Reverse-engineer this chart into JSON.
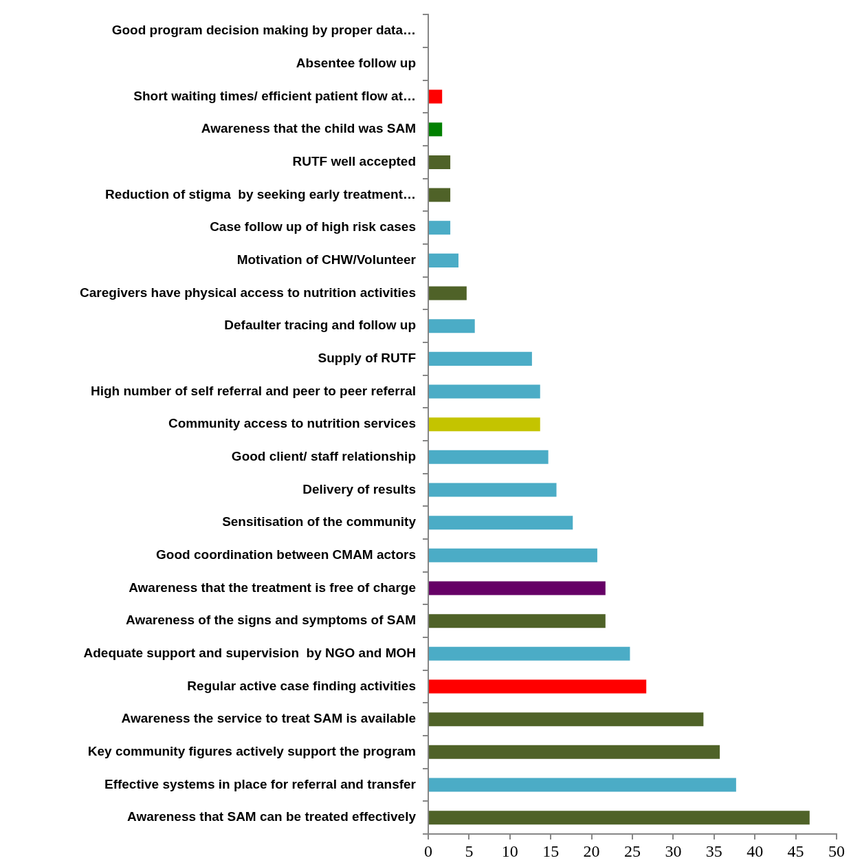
{
  "chart_data": {
    "type": "bar",
    "orientation": "horizontal",
    "categories": [
      "Good program decision making by proper data…",
      "Absentee follow up",
      "Short waiting times/ efficient patient flow at…",
      "Awareness that the child was SAM",
      "RUTF well accepted",
      "Reduction of stigma  by seeking early treatment…",
      "Case follow up of high risk cases",
      "Motivation of CHW/Volunteer",
      "Caregivers have physical access to nutrition activities",
      "Defaulter tracing and follow up",
      "Supply of RUTF",
      "High number of self referral and peer to peer referral",
      "Community access to nutrition services",
      "Good client/ staff relationship",
      "Delivery of results",
      "Sensitisation of the community",
      "Good coordination between CMAM actors",
      "Awareness that the treatment is free of charge",
      "Awareness of the signs and symptoms of SAM",
      "Adequate support and supervision  by NGO and MOH",
      "Regular active case finding activities",
      "Awareness the service to treat SAM is available",
      "Key community figures actively support the program",
      "Effective systems in place for referral and transfer",
      "Awareness that SAM can be treated effectively"
    ],
    "values": [
      0,
      0,
      1.7,
      1.7,
      2.7,
      2.7,
      2.7,
      3.7,
      4.7,
      5.7,
      12.7,
      13.7,
      13.7,
      14.7,
      15.7,
      17.7,
      20.7,
      21.7,
      21.7,
      24.7,
      26.7,
      33.7,
      35.7,
      37.7,
      46.7
    ],
    "colors": [
      "#4bacc6",
      "#4bacc6",
      "#ff0000",
      "#008000",
      "#4f6228",
      "#4f6228",
      "#4bacc6",
      "#4bacc6",
      "#4f6228",
      "#4bacc6",
      "#4bacc6",
      "#4bacc6",
      "#c4c400",
      "#4bacc6",
      "#4bacc6",
      "#4bacc6",
      "#4bacc6",
      "#660066",
      "#4f6228",
      "#4bacc6",
      "#ff0000",
      "#4f6228",
      "#4f6228",
      "#4bacc6",
      "#4f6228"
    ],
    "xlim": [
      0,
      50
    ],
    "xticks": [
      0,
      5,
      10,
      15,
      20,
      25,
      30,
      35,
      40,
      45,
      50
    ],
    "grid": false
  }
}
